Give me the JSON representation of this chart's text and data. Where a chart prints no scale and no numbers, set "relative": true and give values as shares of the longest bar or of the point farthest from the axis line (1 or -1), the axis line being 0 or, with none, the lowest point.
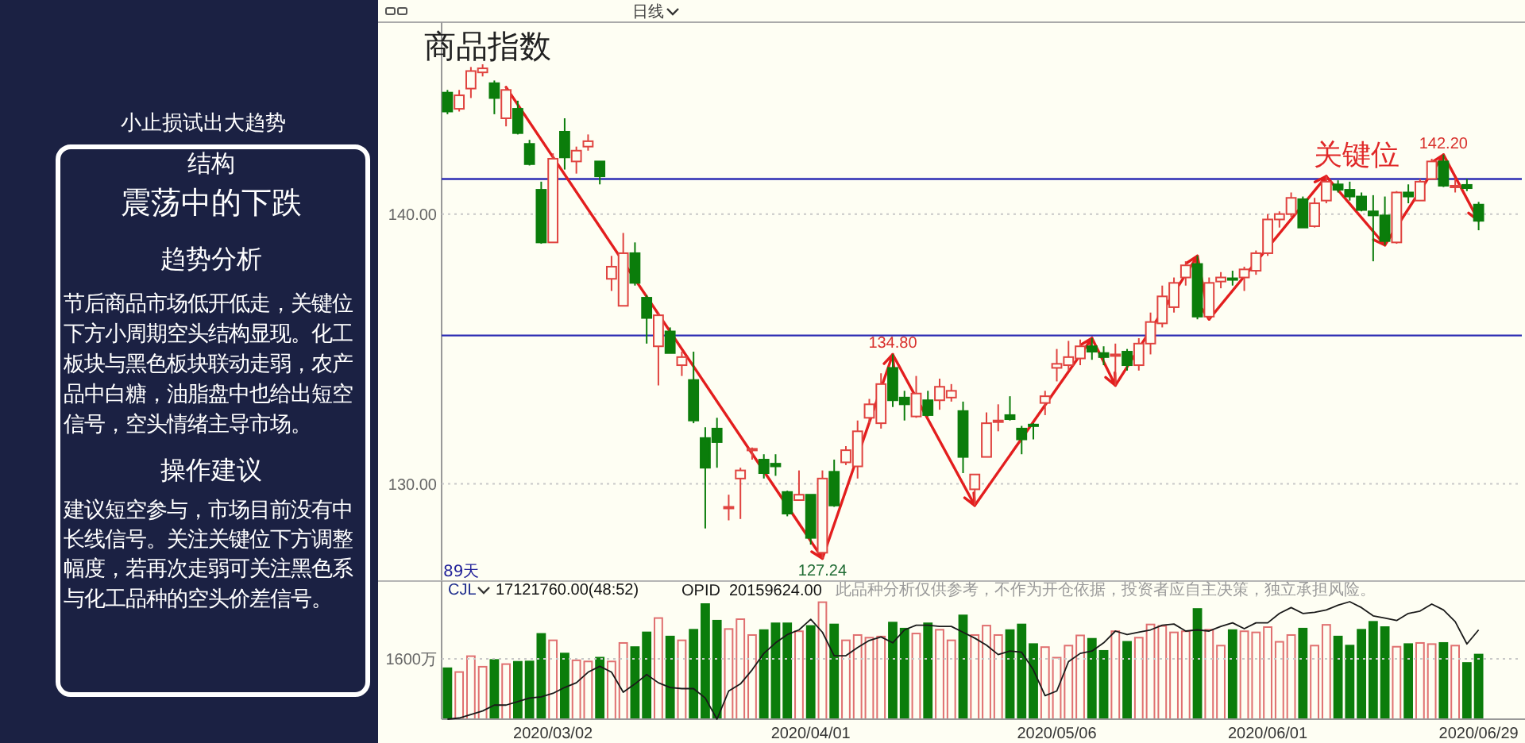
{
  "chart_data": [
    {
      "type": "other",
      "title": "小止损试出大趋势",
      "annotations": [
        "结构",
        "震荡中的下跌",
        "趋势分析",
        "节后商品市场低开低走，关键位下方小周期空头结构显现。化工板块与黑色板块联动走弱，农产品中白糖，油脂盘中也给出短空信号，空头情绪主导市场。",
        "操作建议",
        "建议短空参与，市场目前没有中长线信号。关注关键位下方调整幅度，若再次走弱可关注黑色系与化工品种的空头价差信号。"
      ]
    },
    {
      "type": "candlestick",
      "title": "商品指数",
      "subtitle": "日线",
      "categories": [
        null,
        null,
        null,
        null,
        null,
        null,
        null,
        null,
        null,
        "2020/03/02",
        null,
        null,
        null,
        null,
        null,
        null,
        null,
        null,
        null,
        null,
        null,
        null,
        null,
        null,
        null,
        null,
        null,
        null,
        null,
        null,
        null,
        "2020/04/01",
        null,
        null,
        null,
        null,
        null,
        null,
        null,
        null,
        null,
        null,
        null,
        null,
        null,
        null,
        null,
        null,
        null,
        null,
        null,
        null,
        "2020/05/06",
        null,
        null,
        null,
        null,
        null,
        null,
        null,
        null,
        null,
        null,
        null,
        null,
        null,
        null,
        null,
        null,
        null,
        "2020/06/01",
        null,
        null,
        null,
        null,
        null,
        null,
        null,
        null,
        null,
        null,
        null,
        null,
        null,
        null,
        null,
        null,
        null,
        "2020/06/29"
      ],
      "ohlc": [
        [
          144.5,
          144.6,
          143.7,
          143.8
        ],
        [
          143.9,
          144.6,
          143.8,
          144.4
        ],
        [
          144.65,
          145.45,
          144.3,
          145.3
        ],
        [
          145.25,
          145.55,
          145.1,
          145.4
        ],
        [
          144.85,
          144.95,
          143.7,
          144.3
        ],
        [
          143.55,
          144.7,
          143.25,
          144.6
        ],
        [
          143.9,
          144.2,
          142.95,
          143.0
        ],
        [
          142.6,
          142.75,
          141.8,
          141.85
        ],
        [
          140.9,
          141.2,
          138.9,
          138.95
        ],
        [
          138.95,
          142.25,
          138.95,
          142.05
        ],
        [
          143.05,
          143.55,
          141.65,
          142.1
        ],
        [
          141.95,
          142.5,
          141.5,
          142.35
        ],
        [
          142.5,
          142.95,
          142.35,
          142.7
        ],
        [
          141.95,
          141.95,
          141.1,
          141.4
        ],
        [
          137.6,
          138.45,
          137.15,
          138.05
        ],
        [
          136.6,
          139.3,
          136.6,
          138.55
        ],
        [
          138.55,
          138.95,
          137.35,
          137.45
        ],
        [
          136.9,
          137.0,
          135.2,
          136.15
        ],
        [
          135.1,
          136.35,
          133.65,
          136.25
        ],
        [
          135.65,
          135.8,
          134.85,
          134.85
        ],
        [
          134.4,
          134.9,
          134.0,
          134.7
        ],
        [
          133.85,
          134.9,
          132.25,
          132.35
        ],
        [
          131.7,
          132.1,
          128.35,
          130.6
        ],
        [
          132.05,
          132.45,
          130.6,
          131.55
        ],
        [
          129.1,
          129.6,
          128.65,
          129.15
        ],
        [
          130.2,
          130.6,
          128.7,
          130.5
        ],
        [
          131.25,
          131.35,
          130.9,
          131.3
        ],
        [
          130.9,
          131.1,
          130.2,
          130.4
        ],
        [
          130.75,
          131.1,
          130.3,
          130.65
        ],
        [
          129.7,
          129.75,
          128.8,
          128.9
        ],
        [
          129.4,
          130.5,
          129.4,
          129.6
        ],
        [
          129.6,
          129.6,
          127.75,
          128.0
        ],
        [
          127.45,
          130.5,
          127.24,
          130.2
        ],
        [
          130.45,
          130.9,
          129.15,
          129.2
        ],
        [
          130.8,
          131.4,
          130.7,
          131.25
        ],
        [
          130.65,
          132.35,
          130.2,
          131.95
        ],
        [
          132.45,
          133.15,
          132.25,
          132.95
        ],
        [
          132.25,
          134.1,
          132.05,
          133.7
        ],
        [
          134.3,
          134.8,
          132.85,
          133.1
        ],
        [
          133.2,
          133.45,
          132.35,
          132.95
        ],
        [
          132.5,
          134.0,
          132.45,
          133.35
        ],
        [
          133.1,
          133.45,
          132.5,
          132.55
        ],
        [
          133.1,
          133.9,
          132.75,
          133.6
        ],
        [
          133.2,
          133.7,
          133.05,
          133.45
        ],
        [
          132.7,
          133.05,
          130.4,
          131.0
        ],
        [
          129.8,
          130.35,
          129.2,
          130.35
        ],
        [
          131.0,
          132.65,
          131.0,
          132.25
        ],
        [
          132.3,
          132.95,
          131.95,
          132.35
        ],
        [
          132.55,
          133.25,
          132.35,
          132.4
        ],
        [
          132.05,
          132.15,
          131.1,
          131.65
        ],
        [
          132.2,
          132.25,
          131.65,
          132.15
        ],
        [
          133.0,
          133.45,
          132.55,
          133.25
        ],
        [
          134.3,
          135.0,
          133.8,
          134.45
        ],
        [
          134.4,
          135.3,
          134.2,
          134.7
        ],
        [
          134.65,
          135.35,
          134.4,
          135.1
        ],
        [
          135.1,
          135.4,
          134.6,
          134.9
        ],
        [
          134.85,
          135.1,
          134.4,
          134.7
        ],
        [
          134.75,
          135.2,
          133.65,
          134.8
        ],
        [
          134.9,
          135.0,
          134.2,
          134.4
        ],
        [
          134.4,
          135.4,
          134.2,
          135.2
        ],
        [
          135.2,
          136.35,
          134.8,
          136.0
        ],
        [
          135.95,
          137.35,
          135.8,
          136.95
        ],
        [
          136.55,
          137.65,
          136.35,
          137.45
        ],
        [
          137.65,
          138.25,
          137.35,
          138.1
        ],
        [
          138.15,
          138.45,
          136.1,
          136.2
        ],
        [
          136.2,
          137.65,
          136.1,
          137.45
        ],
        [
          137.5,
          137.85,
          137.25,
          137.65
        ],
        [
          137.62,
          137.9,
          137.35,
          137.58
        ],
        [
          137.65,
          138.05,
          137.15,
          137.95
        ],
        [
          137.9,
          138.65,
          137.75,
          138.55
        ],
        [
          138.55,
          140.0,
          138.45,
          139.8
        ],
        [
          139.8,
          140.1,
          139.5,
          140.0
        ],
        [
          140.0,
          140.8,
          139.9,
          140.6
        ],
        [
          140.55,
          140.65,
          139.5,
          139.5
        ],
        [
          139.55,
          140.6,
          139.5,
          140.4
        ],
        [
          140.5,
          141.4,
          140.4,
          141.2
        ],
        [
          141.1,
          141.25,
          140.8,
          140.9
        ],
        [
          140.9,
          141.2,
          140.5,
          140.65
        ],
        [
          140.65,
          140.8,
          140.1,
          140.15
        ],
        [
          140.1,
          140.7,
          138.25,
          139.95
        ],
        [
          139.95,
          140.65,
          138.85,
          139.0
        ],
        [
          138.95,
          140.85,
          138.9,
          140.8
        ],
        [
          140.8,
          141.1,
          140.4,
          140.65
        ],
        [
          140.5,
          141.3,
          140.5,
          141.2
        ],
        [
          141.3,
          142.05,
          141.3,
          141.95
        ],
        [
          141.95,
          142.2,
          141.0,
          141.05
        ],
        [
          141.0,
          141.3,
          140.8,
          141.05
        ],
        [
          141.08,
          141.3,
          140.85,
          140.96
        ],
        [
          140.35,
          140.45,
          139.4,
          139.75
        ]
      ],
      "colors": [
        "#0b7d0b",
        "#e0433f",
        "#e0433f",
        "#e0433f",
        "#0b7d0b",
        "#e0433f",
        "#0b7d0b",
        "#0b7d0b",
        "#0b7d0b",
        "#e0433f",
        "#0b7d0b",
        "#e0433f",
        "#e0433f",
        "#0b7d0b",
        "#e0433f",
        "#e0433f",
        "#0b7d0b",
        "#0b7d0b",
        "#e0433f",
        "#0b7d0b",
        "#e0433f",
        "#0b7d0b",
        "#0b7d0b",
        "#0b7d0b",
        "#e0433f",
        "#e0433f",
        "#e0433f",
        "#0b7d0b",
        "#0b7d0b",
        "#0b7d0b",
        "#e0433f",
        "#0b7d0b",
        "#e0433f",
        "#0b7d0b",
        "#e0433f",
        "#e0433f",
        "#e0433f",
        "#e0433f",
        "#0b7d0b",
        "#0b7d0b",
        "#e0433f",
        "#0b7d0b",
        "#e0433f",
        "#e0433f",
        "#0b7d0b",
        "#e0433f",
        "#e0433f",
        "#e0433f",
        "#0b7d0b",
        "#0b7d0b",
        "#0b7d0b",
        "#e0433f",
        "#e0433f",
        "#e0433f",
        "#e0433f",
        "#0b7d0b",
        "#0b7d0b",
        "#e0433f",
        "#0b7d0b",
        "#e0433f",
        "#e0433f",
        "#e0433f",
        "#e0433f",
        "#e0433f",
        "#0b7d0b",
        "#e0433f",
        "#e0433f",
        "#0b7d0b",
        "#e0433f",
        "#e0433f",
        "#e0433f",
        "#e0433f",
        "#e0433f",
        "#0b7d0b",
        "#e0433f",
        "#e0433f",
        "#0b7d0b",
        "#0b7d0b",
        "#0b7d0b",
        "#0b7d0b",
        "#0b7d0b",
        "#e0433f",
        "#0b7d0b",
        "#e0433f",
        "#e0433f",
        "#0b7d0b",
        "#e0433f",
        "#0b7d0b",
        "#0b7d0b"
      ],
      "ylim": [
        126.4,
        147.05
      ],
      "yticks": [
        {
          "value": 130,
          "label": "130.00"
        },
        {
          "value": 140,
          "label": "140.00"
        }
      ],
      "grid": "y",
      "tick_labels": "y",
      "ref_lines": [
        {
          "axis": "y",
          "value": 135.5,
          "color": "#2b2bb3"
        },
        {
          "axis": "y",
          "value": 141.3,
          "label": "关键位",
          "color": "#2b2bb3"
        }
      ],
      "annotations": [
        "89天",
        {
          "text": "134.80",
          "y": 134.8
        },
        {
          "text": "127.24",
          "y": 127.24
        },
        {
          "text": "142.20",
          "y": 142.2
        }
      ]
    },
    {
      "type": "bar",
      "categories": [
        null,
        null,
        null,
        null,
        null,
        null,
        null,
        null,
        null,
        "2020/03/02",
        null,
        null,
        null,
        null,
        null,
        null,
        null,
        null,
        null,
        null,
        null,
        null,
        null,
        null,
        null,
        null,
        null,
        null,
        null,
        null,
        null,
        "2020/04/01",
        null,
        null,
        null,
        null,
        null,
        null,
        null,
        null,
        null,
        null,
        null,
        null,
        null,
        null,
        null,
        null,
        null,
        null,
        null,
        null,
        "2020/05/06",
        null,
        null,
        null,
        null,
        null,
        null,
        null,
        null,
        null,
        null,
        null,
        null,
        null,
        null,
        null,
        null,
        null,
        "2020/06/01",
        null,
        null,
        null,
        null,
        null,
        null,
        null,
        null,
        null,
        null,
        null,
        null,
        null,
        null,
        null,
        null,
        null,
        "2020/06/29"
      ],
      "values": [
        1350,
        1250,
        1670,
        1390,
        1570,
        1460,
        1520,
        1530,
        2260,
        2090,
        1740,
        1560,
        1530,
        1630,
        1530,
        2020,
        1910,
        2300,
        2680,
        2190,
        2090,
        2370,
        3050,
        2610,
        2390,
        2650,
        2230,
        2360,
        2540,
        2540,
        2330,
        2470,
        3100,
        2510,
        2090,
        2230,
        2160,
        2190,
        2560,
        2400,
        2270,
        2540,
        2370,
        2090,
        2750,
        2230,
        2480,
        2230,
        2360,
        2510,
        1990,
        1910,
        1630,
        1950,
        2220,
        2130,
        1810,
        2330,
        2050,
        2160,
        2510,
        2470,
        2300,
        2330,
        2920,
        2370,
        1950,
        2360,
        2330,
        2300,
        2440,
        2050,
        2230,
        2400,
        1950,
        2500,
        2190,
        1950,
        2370,
        2580,
        2440,
        1920,
        1990,
        2020,
        1990,
        2020,
        1950,
        1490,
        1712
      ],
      "colors": [
        "#0b7d0b",
        "#e07070",
        "#e07070",
        "#e07070",
        "#0b7d0b",
        "#e07070",
        "#0b7d0b",
        "#0b7d0b",
        "#0b7d0b",
        "#e07070",
        "#0b7d0b",
        "#e07070",
        "#e07070",
        "#0b7d0b",
        "#e07070",
        "#e07070",
        "#0b7d0b",
        "#0b7d0b",
        "#e07070",
        "#0b7d0b",
        "#e07070",
        "#0b7d0b",
        "#0b7d0b",
        "#0b7d0b",
        "#e07070",
        "#e07070",
        "#e07070",
        "#0b7d0b",
        "#0b7d0b",
        "#0b7d0b",
        "#e07070",
        "#0b7d0b",
        "#e07070",
        "#0b7d0b",
        "#e07070",
        "#e07070",
        "#e07070",
        "#e07070",
        "#0b7d0b",
        "#0b7d0b",
        "#e07070",
        "#0b7d0b",
        "#e07070",
        "#e07070",
        "#0b7d0b",
        "#e07070",
        "#e07070",
        "#e07070",
        "#0b7d0b",
        "#0b7d0b",
        "#0b7d0b",
        "#e07070",
        "#e07070",
        "#e07070",
        "#e07070",
        "#0b7d0b",
        "#0b7d0b",
        "#e07070",
        "#0b7d0b",
        "#e07070",
        "#e07070",
        "#e07070",
        "#e07070",
        "#e07070",
        "#0b7d0b",
        "#e07070",
        "#e07070",
        "#0b7d0b",
        "#e07070",
        "#e07070",
        "#e07070",
        "#e07070",
        "#e07070",
        "#0b7d0b",
        "#e07070",
        "#e07070",
        "#0b7d0b",
        "#0b7d0b",
        "#0b7d0b",
        "#0b7d0b",
        "#0b7d0b",
        "#e07070",
        "#0b7d0b",
        "#e07070",
        "#e07070",
        "#0b7d0b",
        "#e07070",
        "#0b7d0b",
        "#0b7d0b"
      ],
      "ylim": [
        0,
        3660
      ],
      "yticks": [
        {
          "value": 1600,
          "label": "1600万"
        }
      ],
      "grid": "y",
      "annotations": [
        "CJL",
        "17121760.00(48:52)",
        "此品种分析仅供参考，不作为开仓依据，投资者应自主决策，独立承担风险。"
      ]
    },
    {
      "type": "line",
      "relative": true,
      "categories": [
        null,
        null,
        null,
        null,
        null,
        null,
        null,
        null,
        null,
        null,
        null,
        null,
        null,
        null,
        null,
        null,
        null,
        null,
        null,
        null,
        null,
        null,
        null,
        null,
        null,
        null,
        null,
        null,
        null,
        null,
        null,
        null,
        null,
        null,
        null,
        null,
        null,
        null,
        null,
        null,
        null,
        null,
        null,
        null,
        null,
        null,
        null,
        null,
        null,
        null,
        null,
        null,
        null,
        null,
        null,
        null,
        null,
        null,
        null,
        null,
        null,
        null,
        null,
        null,
        null,
        null,
        null,
        null,
        null,
        null,
        null,
        null,
        null,
        null,
        null,
        null,
        null,
        null,
        null,
        null,
        null,
        null,
        null,
        null,
        null,
        null,
        null,
        null,
        null
      ],
      "series": [
        {
          "name": "OPID",
          "color": "#1a1a1a",
          "values": [
            0,
            0.01,
            0.04,
            0.07,
            0.12,
            0.12,
            0.15,
            0.18,
            0.19,
            0.22,
            0.27,
            0.31,
            0.4,
            0.45,
            0.4,
            0.23,
            0.3,
            0.38,
            0.31,
            0.27,
            0.26,
            0.26,
            0.18,
            0,
            0.24,
            0.3,
            0.42,
            0.56,
            0.65,
            0.72,
            0.76,
            0.85,
            0.74,
            0.54,
            0.54,
            0.61,
            0.67,
            0.7,
            0.65,
            0.76,
            0.8,
            0.8,
            0.79,
            0.79,
            0.74,
            0.69,
            0.63,
            0.55,
            0.58,
            0.57,
            0.42,
            0.2,
            0.24,
            0.49,
            0.56,
            0.58,
            0.65,
            0.75,
            0.72,
            0.74,
            0.76,
            0.8,
            0.81,
            0.75,
            0.76,
            0.75,
            0.79,
            0.82,
            0.77,
            0.82,
            0.82,
            0.9,
            0.95,
            0.9,
            0.91,
            0.93,
            0.97,
            1,
            0.95,
            0.88,
            0.86,
            0.84,
            0.9,
            0.92,
            0.98,
            0.93,
            0.83,
            0.64,
            0.76
          ]
        }
      ],
      "annotations": [
        "20159624.00"
      ]
    }
  ]
}
